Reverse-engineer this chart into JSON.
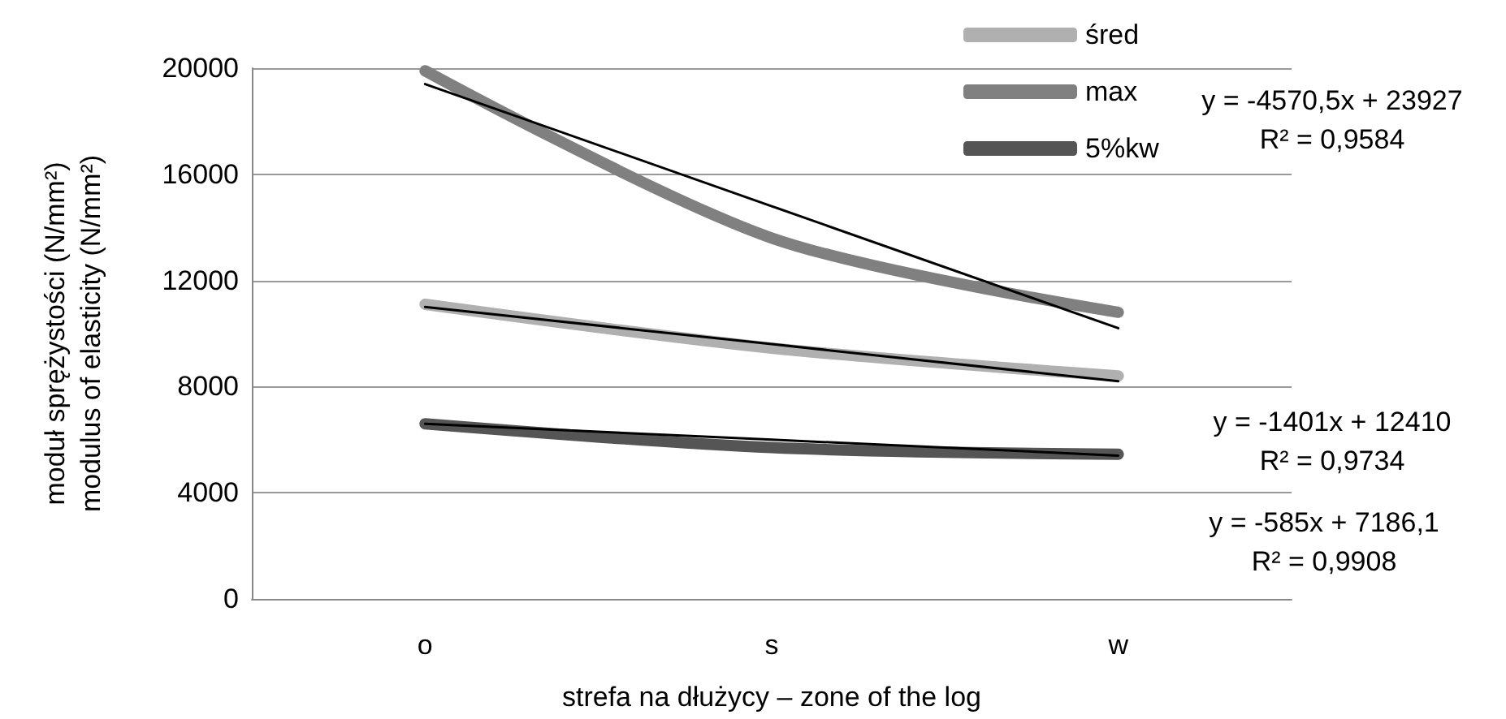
{
  "chart_data": {
    "type": "line",
    "xlabel": "strefa na dłużycy – zone of the log",
    "ylabel": "moduł sprężystości (N/mm²)\nmodulus of elasticity (N/mm²)",
    "categories": [
      "o",
      "s",
      "w"
    ],
    "ylim": [
      0,
      20000
    ],
    "yticks": [
      0,
      4000,
      8000,
      12000,
      16000,
      20000
    ],
    "grid": "y",
    "legend": "top right",
    "marker": "none",
    "line_style": "solid",
    "series": [
      {
        "name": "śred",
        "color": "#b0b0b0",
        "values": [
          11100,
          9450,
          8400
        ]
      },
      {
        "name": "max",
        "color": "#808080",
        "values": [
          19900,
          13600,
          10800
        ]
      },
      {
        "name": "5%kw",
        "color": "#555555",
        "values": [
          6600,
          5700,
          5450
        ]
      },
      {
        "color": "#000000",
        "values": [
          19400,
          14800,
          10200
        ]
      },
      {
        "color": "#000000",
        "values": [
          11000,
          9600,
          8200
        ]
      },
      {
        "color": "#000000",
        "values": [
          6600,
          6000,
          5400
        ]
      }
    ],
    "annotations": [
      "y = -4570,5x + 23927",
      "R² = 0,9584",
      "y = -1401x + 12410",
      "R² = 0,9734",
      "y = -585x + 7186,1",
      "R² = 0,9908"
    ]
  }
}
